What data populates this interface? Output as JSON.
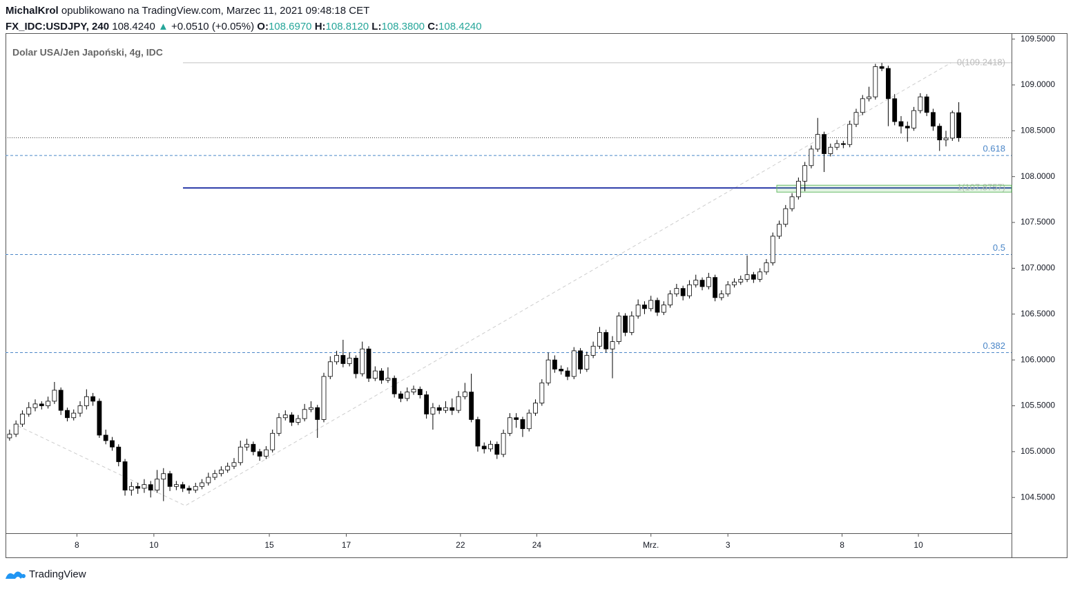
{
  "header": {
    "author": "MichalKrol",
    "published": "opublikowano na TradingView.com, Marzec 11, 2021 09:48:18 CET",
    "symbol": "FX_IDC:USDJPY, 240",
    "last": "108.4240",
    "change_arrow": "▲",
    "change": "+0.0510 (+0.05%)",
    "o_label": "O:",
    "o": "108.6970",
    "h_label": "H:",
    "h": "108.8120",
    "l_label": "L:",
    "l": "108.3800",
    "c_label": "C:",
    "c": "108.4240"
  },
  "footer": {
    "brand": "TradingView"
  },
  "chart_data": {
    "type": "candlestick",
    "title": "Dolar USA/Jen Japoński, 4g, IDC",
    "ylim": [
      104.11,
      109.625
    ],
    "yticks": [
      {
        "value": 104.5,
        "label": "104.5000"
      },
      {
        "value": 105,
        "label": "105.0000"
      },
      {
        "value": 105.5,
        "label": "105.5000"
      },
      {
        "value": 106,
        "label": "106.0000"
      },
      {
        "value": 106.5,
        "label": "106.5000"
      },
      {
        "value": 107,
        "label": "107.0000"
      },
      {
        "value": 107.5,
        "label": "107.5000"
      },
      {
        "value": 108,
        "label": "108.0000"
      },
      {
        "value": 108.5,
        "label": "108.5000"
      },
      {
        "value": 109,
        "label": "109.0000"
      },
      {
        "value": 109.5,
        "label": "109.5000"
      }
    ],
    "xlim": [
      -0.2,
      156
    ],
    "xticks": [
      {
        "value": 10.5,
        "label": "8"
      },
      {
        "value": 22.5,
        "label": "10"
      },
      {
        "value": 40.5,
        "label": "15"
      },
      {
        "value": 52.5,
        "label": "17"
      },
      {
        "value": 70.3,
        "label": "22"
      },
      {
        "value": 82.2,
        "label": "24"
      },
      {
        "value": 100,
        "label": "Mrz."
      },
      {
        "value": 112,
        "label": "3"
      },
      {
        "value": 129.8,
        "label": "8"
      },
      {
        "value": 141.7,
        "label": "10"
      }
    ],
    "up_color": "#ffffff",
    "down_color": "#000000",
    "current_price": 108.424,
    "fib_levels": [
      {
        "value": 109.2418,
        "label": "0(109.2418)",
        "color": "#c0c0c0"
      },
      {
        "value": 108.23,
        "label": "0.618",
        "color": "#4a86c8"
      },
      {
        "value": 107.8757,
        "label": "1(107.8757)",
        "color": "#2a3aa8"
      },
      {
        "value": 107.15,
        "label": "0.5",
        "color": "#4a86c8"
      },
      {
        "value": 106.08,
        "label": "0.382",
        "color": "#4a86c8"
      }
    ],
    "trend_line": {
      "x": [
        1.3,
        27.4,
        146.8
      ],
      "values": [
        105.28,
        104.41,
        109.2418
      ]
    },
    "candles": [
      [
        105.15,
        105.24,
        105.12,
        105.19
      ],
      [
        105.19,
        105.34,
        105.16,
        105.3
      ],
      [
        105.3,
        105.45,
        105.27,
        105.41
      ],
      [
        105.41,
        105.54,
        105.38,
        105.48
      ],
      [
        105.48,
        105.57,
        105.44,
        105.52
      ],
      [
        105.52,
        105.55,
        105.46,
        105.5
      ],
      [
        105.5,
        105.6,
        105.47,
        105.55
      ],
      [
        105.55,
        105.76,
        105.52,
        105.67
      ],
      [
        105.67,
        105.7,
        105.4,
        105.45
      ],
      [
        105.45,
        105.48,
        105.33,
        105.37
      ],
      [
        105.37,
        105.46,
        105.34,
        105.42
      ],
      [
        105.42,
        105.55,
        105.38,
        105.5
      ],
      [
        105.5,
        105.68,
        105.46,
        105.6
      ],
      [
        105.6,
        105.64,
        105.5,
        105.55
      ],
      [
        105.55,
        105.58,
        105.15,
        105.18
      ],
      [
        105.18,
        105.24,
        105.08,
        105.12
      ],
      [
        105.12,
        105.16,
        105.01,
        105.05
      ],
      [
        105.05,
        105.08,
        104.84,
        104.89
      ],
      [
        104.89,
        104.92,
        104.52,
        104.58
      ],
      [
        104.58,
        104.67,
        104.52,
        104.62
      ],
      [
        104.62,
        104.66,
        104.54,
        104.6
      ],
      [
        104.6,
        104.7,
        104.55,
        104.64
      ],
      [
        104.64,
        104.68,
        104.5,
        104.58
      ],
      [
        104.58,
        104.8,
        104.55,
        104.7
      ],
      [
        104.7,
        104.82,
        104.46,
        104.76
      ],
      [
        104.76,
        104.79,
        104.57,
        104.62
      ],
      [
        104.62,
        104.68,
        104.58,
        104.64
      ],
      [
        104.64,
        104.67,
        104.56,
        104.6
      ],
      [
        104.6,
        104.63,
        104.54,
        104.58
      ],
      [
        104.58,
        104.66,
        104.55,
        104.62
      ],
      [
        104.62,
        104.7,
        104.59,
        104.66
      ],
      [
        104.66,
        104.77,
        104.63,
        104.72
      ],
      [
        104.72,
        104.8,
        104.69,
        104.76
      ],
      [
        104.76,
        104.84,
        104.73,
        104.8
      ],
      [
        104.8,
        104.88,
        104.77,
        104.84
      ],
      [
        104.84,
        104.93,
        104.81,
        104.88
      ],
      [
        104.88,
        105.12,
        104.85,
        105.05
      ],
      [
        105.05,
        105.14,
        105.01,
        105.08
      ],
      [
        105.08,
        105.11,
        104.96,
        105.0
      ],
      [
        105.0,
        105.03,
        104.9,
        104.95
      ],
      [
        104.95,
        105.06,
        104.92,
        105.02
      ],
      [
        105.02,
        105.24,
        104.99,
        105.2
      ],
      [
        105.2,
        105.42,
        105.17,
        105.37
      ],
      [
        105.37,
        105.45,
        105.34,
        105.4
      ],
      [
        105.4,
        105.43,
        105.28,
        105.32
      ],
      [
        105.32,
        105.4,
        105.29,
        105.36
      ],
      [
        105.36,
        105.52,
        105.33,
        105.46
      ],
      [
        105.46,
        105.55,
        105.43,
        105.48
      ],
      [
        105.48,
        105.51,
        105.15,
        105.35
      ],
      [
        105.35,
        105.86,
        105.32,
        105.82
      ],
      [
        105.82,
        106.04,
        105.79,
        105.98
      ],
      [
        105.98,
        106.1,
        105.95,
        106.05
      ],
      [
        106.05,
        106.22,
        105.92,
        105.96
      ],
      [
        105.96,
        106.08,
        105.93,
        106.02
      ],
      [
        106.02,
        106.05,
        105.8,
        105.85
      ],
      [
        105.85,
        106.2,
        105.82,
        106.12
      ],
      [
        106.12,
        106.15,
        105.76,
        105.8
      ],
      [
        105.8,
        105.93,
        105.77,
        105.88
      ],
      [
        105.88,
        105.91,
        105.74,
        105.78
      ],
      [
        105.78,
        105.92,
        105.75,
        105.8
      ],
      [
        105.8,
        105.83,
        105.59,
        105.63
      ],
      [
        105.63,
        105.66,
        105.54,
        105.58
      ],
      [
        105.58,
        105.7,
        105.55,
        105.65
      ],
      [
        105.65,
        105.72,
        105.62,
        105.68
      ],
      [
        105.68,
        105.71,
        105.58,
        105.62
      ],
      [
        105.62,
        105.66,
        105.36,
        105.41
      ],
      [
        105.41,
        105.53,
        105.24,
        105.48
      ],
      [
        105.48,
        105.51,
        105.41,
        105.45
      ],
      [
        105.45,
        105.55,
        105.42,
        105.48
      ],
      [
        105.48,
        105.58,
        105.4,
        105.45
      ],
      [
        105.45,
        105.66,
        105.42,
        105.6
      ],
      [
        105.6,
        105.75,
        105.57,
        105.65
      ],
      [
        105.65,
        105.85,
        105.32,
        105.35
      ],
      [
        105.35,
        105.38,
        105.0,
        105.06
      ],
      [
        105.06,
        105.1,
        104.98,
        105.03
      ],
      [
        105.03,
        105.12,
        105.0,
        105.08
      ],
      [
        105.08,
        105.11,
        104.92,
        104.97
      ],
      [
        104.97,
        105.24,
        104.94,
        105.2
      ],
      [
        105.2,
        105.42,
        105.17,
        105.37
      ],
      [
        105.37,
        105.42,
        105.26,
        105.35
      ],
      [
        105.35,
        105.38,
        105.16,
        105.25
      ],
      [
        105.25,
        105.46,
        105.22,
        105.42
      ],
      [
        105.42,
        105.57,
        105.39,
        105.53
      ],
      [
        105.53,
        105.79,
        105.5,
        105.75
      ],
      [
        105.75,
        106.08,
        105.72,
        106.0
      ],
      [
        106.0,
        106.05,
        105.86,
        105.9
      ],
      [
        105.9,
        105.94,
        105.84,
        105.88
      ],
      [
        105.88,
        105.92,
        105.78,
        105.82
      ],
      [
        105.82,
        106.14,
        105.79,
        106.1
      ],
      [
        106.1,
        106.13,
        105.85,
        105.9
      ],
      [
        105.9,
        106.09,
        105.87,
        106.05
      ],
      [
        106.05,
        106.2,
        106.02,
        106.15
      ],
      [
        106.15,
        106.36,
        106.12,
        106.3
      ],
      [
        106.3,
        106.33,
        106.08,
        106.12
      ],
      [
        106.12,
        106.26,
        105.8,
        106.2
      ],
      [
        106.2,
        106.52,
        106.17,
        106.48
      ],
      [
        106.48,
        106.51,
        106.26,
        106.3
      ],
      [
        106.3,
        106.53,
        106.27,
        106.48
      ],
      [
        106.48,
        106.66,
        106.45,
        106.6
      ],
      [
        106.6,
        106.64,
        106.5,
        106.56
      ],
      [
        106.56,
        106.7,
        106.53,
        106.65
      ],
      [
        106.65,
        106.68,
        106.48,
        106.52
      ],
      [
        106.52,
        106.64,
        106.49,
        106.6
      ],
      [
        106.6,
        106.76,
        106.57,
        106.72
      ],
      [
        106.72,
        106.83,
        106.69,
        106.78
      ],
      [
        106.78,
        106.81,
        106.65,
        106.7
      ],
      [
        106.7,
        106.87,
        106.67,
        106.82
      ],
      [
        106.82,
        106.93,
        106.79,
        106.87
      ],
      [
        106.87,
        106.9,
        106.76,
        106.8
      ],
      [
        106.8,
        106.95,
        106.77,
        106.9
      ],
      [
        106.9,
        106.93,
        106.64,
        106.68
      ],
      [
        106.68,
        106.76,
        106.65,
        106.72
      ],
      [
        106.72,
        106.86,
        106.69,
        106.82
      ],
      [
        106.82,
        106.89,
        106.79,
        106.85
      ],
      [
        106.85,
        106.92,
        106.82,
        106.88
      ],
      [
        106.88,
        107.14,
        106.85,
        106.93
      ],
      [
        106.93,
        106.96,
        106.84,
        106.88
      ],
      [
        106.88,
        107.0,
        106.85,
        106.96
      ],
      [
        106.96,
        107.1,
        106.93,
        107.06
      ],
      [
        107.06,
        107.39,
        107.03,
        107.35
      ],
      [
        107.35,
        107.52,
        107.32,
        107.48
      ],
      [
        107.48,
        107.69,
        107.45,
        107.65
      ],
      [
        107.65,
        107.82,
        107.62,
        107.78
      ],
      [
        107.78,
        107.99,
        107.75,
        107.95
      ],
      [
        107.95,
        108.16,
        107.84,
        108.12
      ],
      [
        108.12,
        108.34,
        108.09,
        108.3
      ],
      [
        108.3,
        108.64,
        108.27,
        108.46
      ],
      [
        108.46,
        108.49,
        108.05,
        108.25
      ],
      [
        108.25,
        108.36,
        108.22,
        108.32
      ],
      [
        108.32,
        108.4,
        108.29,
        108.36
      ],
      [
        108.36,
        108.39,
        108.31,
        108.35
      ],
      [
        108.35,
        108.61,
        108.32,
        108.57
      ],
      [
        108.57,
        108.74,
        108.54,
        108.7
      ],
      [
        108.7,
        108.89,
        108.67,
        108.85
      ],
      [
        108.85,
        108.98,
        108.82,
        108.87
      ],
      [
        108.87,
        109.23,
        108.84,
        109.2
      ],
      [
        109.2,
        109.24,
        109.15,
        109.18
      ],
      [
        109.18,
        109.21,
        108.55,
        108.85
      ],
      [
        108.85,
        108.9,
        108.56,
        108.6
      ],
      [
        108.6,
        108.66,
        108.47,
        108.55
      ],
      [
        108.55,
        108.6,
        108.38,
        108.53
      ],
      [
        108.53,
        108.76,
        108.5,
        108.72
      ],
      [
        108.72,
        108.91,
        108.69,
        108.87
      ],
      [
        108.87,
        108.9,
        108.66,
        108.7
      ],
      [
        108.7,
        108.74,
        108.5,
        108.55
      ],
      [
        108.55,
        108.58,
        108.28,
        108.4
      ],
      [
        108.4,
        108.5,
        108.33,
        108.42
      ],
      [
        108.42,
        108.72,
        108.39,
        108.697
      ],
      [
        108.697,
        108.812,
        108.38,
        108.424
      ]
    ]
  }
}
